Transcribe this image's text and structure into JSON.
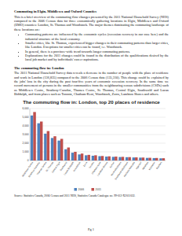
{
  "document": {
    "title": "Commuting in Elgin, Middlesex and Oxford Counties",
    "intro": "This is a brief overview of the commuting flow changes presented by the 2011 National Household Survey (NHS) compared to the 2006 Census data for three economically gathering locations in Elgin, Middlesex and Oxford (EMO) counties: London, St. Thomas and Woodstock. The major themes dominating the commuting landscape of these locations are:",
    "bullets": [
      "Commuting patterns are influenced by the economic cycles (recession recovery in our case here) and the industrial structure of the local economy.",
      "Smaller cities, like St. Thomas, experienced bigger changes in their commuting patterns than larger cities, like London. Exceptions for smaller cities can be found, i.e. Woodstock.",
      "In general, there is a province-wide trend towards longer commuting patterns.",
      "Explanations for the 2011 changes could be found in the distribution of the qualifications desired by the local job market and by individuals' career aspirations."
    ],
    "section_title": "The commuting flow in: London",
    "section_text": "The 2011 National Household Survey data reveals a decrease in the number of people with the place of residence and work in London (136,835) compared to the 2006 Census data (135,310). This change could be explained by the jobs' loss in the city during the past four/five years of economic recession recovery. In the same time we record movement of persons in the smaller communities from the neighbouring census subdivisions (CSDs) such as Middlesex Centre, Strathroy-Caradoc, Thames Centre, St. Thomas, Central Elgin, Southwold and Lucan Biddulph, and from places such as Toronto, Chatham-Kent, Woodstock, Zorra, Lambton Shores and others.",
    "source": "Source: Statistics Canada, 2006 Census and 2011 NHS, Statistics Canada Catalogue no. 99-012-X2011032.",
    "page": "Pg 1"
  },
  "chart_data": {
    "type": "bar",
    "title": "The commuting flow in: London, top 20  places of residence",
    "categories": [
      "Middlesex Centre",
      "Strathroy-Caradoc",
      "Thames Centre",
      "St. Thomas",
      "Central Elgin",
      "Southwold",
      "Lucan Biddulph",
      "Woodstock",
      "Zorra",
      "Toronto",
      "Chatham-Kent",
      "Lambton Shores",
      "Aylmer",
      "North Middlesex",
      "Southwest Middlesex",
      "Adelaide Metcalfe",
      "Ingersoll",
      "Malahide",
      "Kitchener",
      "Bayham"
    ],
    "series": [
      {
        "name": "2006",
        "color": "#4f81bd",
        "values": [
          5200,
          4300,
          3100,
          2600,
          2300,
          1300,
          900,
          700,
          600,
          550,
          500,
          450,
          420,
          400,
          380,
          350,
          330,
          300,
          280,
          250
        ]
      },
      {
        "name": "2011",
        "color": "#c0504d",
        "values": [
          5600,
          4500,
          3400,
          2800,
          2500,
          1500,
          1000,
          800,
          650,
          600,
          520,
          480,
          450,
          420,
          390,
          360,
          340,
          310,
          290,
          260
        ]
      }
    ],
    "ylim": [
      0,
      6000
    ],
    "yticks": [
      0,
      {
        "value": 1000,
        "label": "1,000"
      },
      {
        "value": 2000,
        "label": "2,000"
      },
      {
        "value": 3000,
        "label": "3,000"
      },
      {
        "value": 4000,
        "label": "4,000"
      },
      {
        "value": 5000,
        "label": "5,000"
      },
      {
        "value": 6000,
        "label": "6,000"
      }
    ],
    "grid": true,
    "legend": "bottom"
  }
}
